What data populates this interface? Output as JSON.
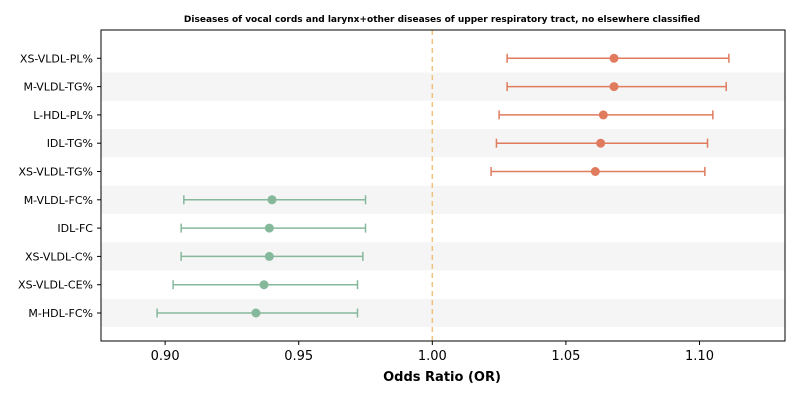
{
  "chart_data": {
    "type": "forest",
    "title": "Diseases of vocal cords and larynx+other diseases of upper respiratory tract, no elsewhere classified",
    "xlabel": "Odds Ratio (OR)",
    "ylabel": "",
    "xlim": [
      0.876,
      1.132
    ],
    "xticks": [
      "0.90",
      "0.95",
      "1.00",
      "1.05",
      "1.10"
    ],
    "reference_line": 1.0,
    "grid": false,
    "legend": "none",
    "colors": {
      "risk": "#e07b5e",
      "protective": "#86b89c",
      "reference": "#f0c27b",
      "band": "#f5f5f5"
    },
    "rows": [
      {
        "label": "XS-VLDL-PL%",
        "or": 1.068,
        "lower": 1.028,
        "upper": 1.111,
        "group": "risk"
      },
      {
        "label": "M-VLDL-TG%",
        "or": 1.068,
        "lower": 1.028,
        "upper": 1.11,
        "group": "risk"
      },
      {
        "label": "L-HDL-PL%",
        "or": 1.064,
        "lower": 1.025,
        "upper": 1.105,
        "group": "risk"
      },
      {
        "label": "IDL-TG%",
        "or": 1.063,
        "lower": 1.024,
        "upper": 1.103,
        "group": "risk"
      },
      {
        "label": "XS-VLDL-TG%",
        "or": 1.061,
        "lower": 1.022,
        "upper": 1.102,
        "group": "risk"
      },
      {
        "label": "M-VLDL-FC%",
        "or": 0.94,
        "lower": 0.907,
        "upper": 0.975,
        "group": "protective"
      },
      {
        "label": "IDL-FC",
        "or": 0.939,
        "lower": 0.906,
        "upper": 0.975,
        "group": "protective"
      },
      {
        "label": "XS-VLDL-C%",
        "or": 0.939,
        "lower": 0.906,
        "upper": 0.974,
        "group": "protective"
      },
      {
        "label": "XS-VLDL-CE%",
        "or": 0.937,
        "lower": 0.903,
        "upper": 0.972,
        "group": "protective"
      },
      {
        "label": "M-HDL-FC%",
        "or": 0.934,
        "lower": 0.897,
        "upper": 0.972,
        "group": "protective"
      }
    ]
  }
}
